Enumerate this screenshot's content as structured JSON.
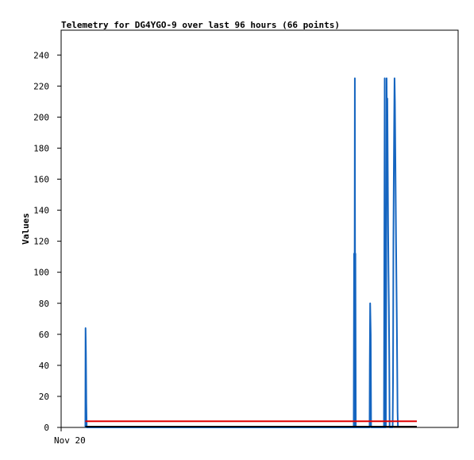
{
  "chart_data": {
    "type": "line",
    "title": "Telemetry for DG4YGO-9 over last 96 hours (66 points)",
    "xlabel": "",
    "ylabel": "Values",
    "ylim": [
      0,
      256
    ],
    "y_ticks": [
      0,
      20,
      40,
      60,
      80,
      100,
      120,
      140,
      160,
      180,
      200,
      220,
      240
    ],
    "x_tick_labels": [
      {
        "label": "Nov 20",
        "hour": 0
      }
    ],
    "xlim_hours": [
      0,
      96
    ],
    "grid": false,
    "legend": "none",
    "series": [
      {
        "color": "#1565c0",
        "points": [
          [
            8.3,
            0
          ],
          [
            8.35,
            64
          ],
          [
            8.45,
            48
          ],
          [
            8.55,
            16
          ],
          [
            8.65,
            0
          ],
          [
            79.3,
            0
          ],
          [
            79.35,
            56
          ],
          [
            79.4,
            112
          ],
          [
            79.5,
            0
          ],
          [
            79.55,
            112
          ],
          [
            79.6,
            225
          ],
          [
            79.7,
            0
          ],
          [
            79.75,
            112
          ],
          [
            79.85,
            0
          ],
          [
            83.5,
            0
          ],
          [
            83.55,
            40
          ],
          [
            83.65,
            80
          ],
          [
            83.8,
            60
          ],
          [
            83.9,
            0
          ],
          [
            87.3,
            0
          ],
          [
            87.4,
            112
          ],
          [
            87.5,
            225
          ],
          [
            87.55,
            0
          ],
          [
            87.6,
            112
          ],
          [
            87.7,
            0
          ],
          [
            87.8,
            0
          ],
          [
            87.9,
            85
          ],
          [
            88.0,
            225
          ],
          [
            88.1,
            190
          ],
          [
            88.2,
            212
          ],
          [
            88.3,
            170
          ],
          [
            88.4,
            130
          ],
          [
            88.5,
            100
          ],
          [
            88.6,
            78
          ],
          [
            88.7,
            45
          ],
          [
            88.8,
            0
          ],
          [
            89.6,
            0
          ],
          [
            89.7,
            30
          ],
          [
            89.8,
            120
          ],
          [
            89.9,
            160
          ],
          [
            90.0,
            195
          ],
          [
            90.1,
            225
          ],
          [
            90.2,
            210
          ],
          [
            90.3,
            180
          ],
          [
            90.4,
            150
          ],
          [
            90.5,
            120
          ],
          [
            90.6,
            95
          ],
          [
            90.7,
            70
          ],
          [
            90.8,
            40
          ],
          [
            90.9,
            10
          ],
          [
            91.0,
            0
          ]
        ]
      },
      {
        "color": "#e00000",
        "points": [
          [
            8.3,
            4
          ],
          [
            96,
            4
          ]
        ]
      },
      {
        "color": "#000000",
        "points": [
          [
            8.3,
            0.5
          ],
          [
            96,
            0.5
          ]
        ]
      }
    ]
  }
}
